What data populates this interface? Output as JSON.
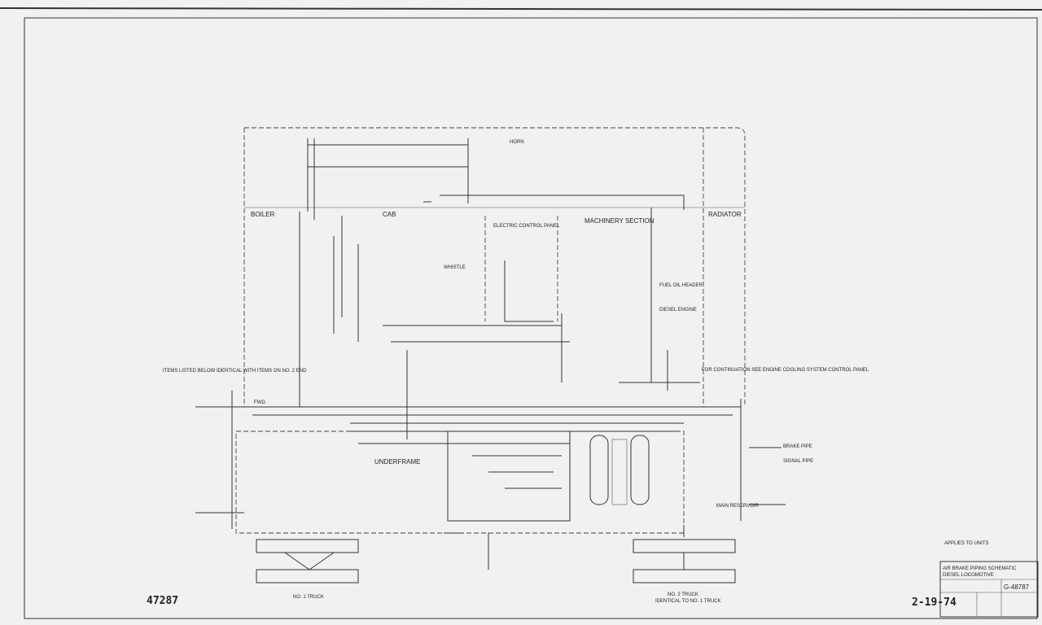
{
  "drawing": {
    "sections": [
      "BOILER",
      "CAB",
      "MACHINERY SECTION",
      "RADIATOR",
      "UNDERFRAME",
      "ELECTRIC CONTROL PANEL"
    ],
    "components": [
      "WHISTLE",
      "HORN",
      "FUEL OIL HEADER",
      "DIESEL ENGINE",
      "BRAKE PIPE",
      "SIGNAL PIPE",
      "MAIN RESERVOIR",
      "FWD."
    ],
    "note": "ITEMS LISTED BELOW IDENTICAL WITH ITEMS ON NO. 2 END",
    "continuation": "FOR CONTINUATION SEE ENGINE COOLING SYSTEM CONTROL PANEL",
    "trucks": [
      {
        "label": "NO. 1 TRUCK"
      },
      {
        "label": "NO. 2 TRUCK",
        "note": "IDENTICAL TO NO. 1 TRUCK"
      }
    ],
    "applies": "APPLIES TO UNITS",
    "title_block": {
      "title": "AIR BRAKE PIPING SCHEMATIC",
      "subtitle": "DIESEL LOCOMOTIVE",
      "number": "G-48787",
      "date": "2-19-74"
    },
    "stamp": "47287"
  }
}
